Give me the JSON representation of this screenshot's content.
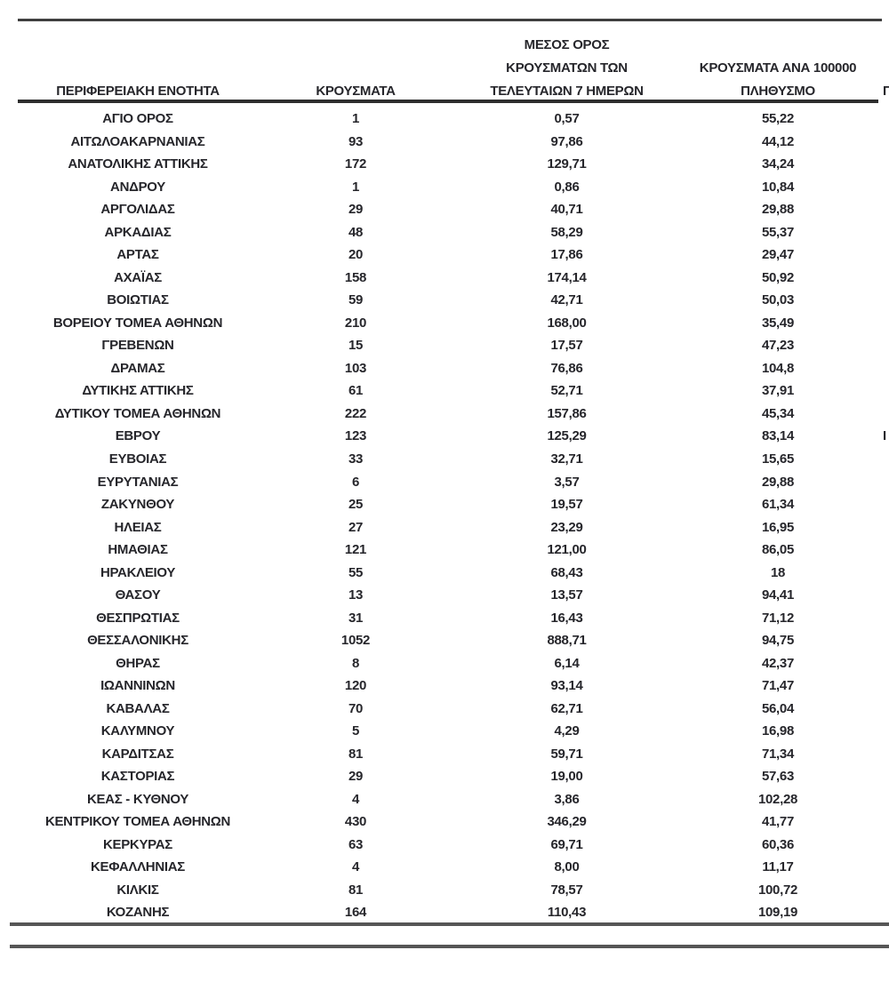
{
  "table": {
    "columns": [
      {
        "label": "ΠΕΡΙΦΕΡΕΙΑΚΗ ΕΝΟΤΗΤΑ"
      },
      {
        "label": "ΚΡΟΥΣΜΑΤΑ"
      },
      {
        "label": "ΜΕΣΟΣ ΟΡΟΣ\nΚΡΟΥΣΜΑΤΩΝ ΤΩΝ\nΤΕΛΕΥΤΑΙΩΝ 7 ΗΜΕΡΩΝ"
      },
      {
        "label": "ΚΡΟΥΣΜΑΤΑ ΑΝΑ 100000\nΠΛΗΘΥΣΜΟ"
      },
      {
        "label": "Π",
        "clipped_at_right_edge": true
      }
    ],
    "rows": [
      [
        "ΑΓΙΟ ΟΡΟΣ",
        "1",
        "0,57",
        "55,22",
        ""
      ],
      [
        "ΑΙΤΩΛΟΑΚΑΡΝΑΝΙΑΣ",
        "93",
        "97,86",
        "44,12",
        ""
      ],
      [
        "ΑΝΑΤΟΛΙΚΗΣ ΑΤΤΙΚΗΣ",
        "172",
        "129,71",
        "34,24",
        ""
      ],
      [
        "ΑΝΔΡΟΥ",
        "1",
        "0,86",
        "10,84",
        ""
      ],
      [
        "ΑΡΓΟΛΙΔΑΣ",
        "29",
        "40,71",
        "29,88",
        ""
      ],
      [
        "ΑΡΚΑΔΙΑΣ",
        "48",
        "58,29",
        "55,37",
        ""
      ],
      [
        "ΑΡΤΑΣ",
        "20",
        "17,86",
        "29,47",
        ""
      ],
      [
        "ΑΧΑΪΑΣ",
        "158",
        "174,14",
        "50,92",
        ""
      ],
      [
        "ΒΟΙΩΤΙΑΣ",
        "59",
        "42,71",
        "50,03",
        ""
      ],
      [
        "ΒΟΡΕΙΟΥ ΤΟΜΕΑ ΑΘΗΝΩΝ",
        "210",
        "168,00",
        "35,49",
        ""
      ],
      [
        "ΓΡΕΒΕΝΩΝ",
        "15",
        "17,57",
        "47,23",
        ""
      ],
      [
        "ΔΡΑΜΑΣ",
        "103",
        "76,86",
        "104,8",
        ""
      ],
      [
        "ΔΥΤΙΚΗΣ ΑΤΤΙΚΗΣ",
        "61",
        "52,71",
        "37,91",
        ""
      ],
      [
        "ΔΥΤΙΚΟΥ ΤΟΜΕΑ ΑΘΗΝΩΝ",
        "222",
        "157,86",
        "45,34",
        ""
      ],
      [
        "ΕΒΡΟΥ",
        "123",
        "125,29",
        "83,14",
        "Ι"
      ],
      [
        "ΕΥΒΟΙΑΣ",
        "33",
        "32,71",
        "15,65",
        ""
      ],
      [
        "ΕΥΡΥΤΑΝΙΑΣ",
        "6",
        "3,57",
        "29,88",
        ""
      ],
      [
        "ΖΑΚΥΝΘΟΥ",
        "25",
        "19,57",
        "61,34",
        ""
      ],
      [
        "ΗΛΕΙΑΣ",
        "27",
        "23,29",
        "16,95",
        ""
      ],
      [
        "ΗΜΑΘΙΑΣ",
        "121",
        "121,00",
        "86,05",
        ""
      ],
      [
        "ΗΡΑΚΛΕΙΟΥ",
        "55",
        "68,43",
        "18",
        ""
      ],
      [
        "ΘΑΣΟΥ",
        "13",
        "13,57",
        "94,41",
        ""
      ],
      [
        "ΘΕΣΠΡΩΤΙΑΣ",
        "31",
        "16,43",
        "71,12",
        ""
      ],
      [
        "ΘΕΣΣΑΛΟΝΙΚΗΣ",
        "1052",
        "888,71",
        "94,75",
        ""
      ],
      [
        "ΘΗΡΑΣ",
        "8",
        "6,14",
        "42,37",
        ""
      ],
      [
        "ΙΩΑΝΝΙΝΩΝ",
        "120",
        "93,14",
        "71,47",
        ""
      ],
      [
        "ΚΑΒΑΛΑΣ",
        "70",
        "62,71",
        "56,04",
        ""
      ],
      [
        "ΚΑΛΥΜΝΟΥ",
        "5",
        "4,29",
        "16,98",
        ""
      ],
      [
        "ΚΑΡΔΙΤΣΑΣ",
        "81",
        "59,71",
        "71,34",
        ""
      ],
      [
        "ΚΑΣΤΟΡΙΑΣ",
        "29",
        "19,00",
        "57,63",
        ""
      ],
      [
        "ΚΕΑΣ - ΚΥΘΝΟΥ",
        "4",
        "3,86",
        "102,28",
        ""
      ],
      [
        "ΚΕΝΤΡΙΚΟΥ ΤΟΜΕΑ ΑΘΗΝΩΝ",
        "430",
        "346,29",
        "41,77",
        ""
      ],
      [
        "ΚΕΡΚΥΡΑΣ",
        "63",
        "69,71",
        "60,36",
        ""
      ],
      [
        "ΚΕΦΑΛΛΗΝΙΑΣ",
        "4",
        "8,00",
        "11,17",
        ""
      ],
      [
        "ΚΙΛΚΙΣ",
        "81",
        "78,57",
        "100,72",
        ""
      ],
      [
        "ΚΟΖΑΝΗΣ",
        "164",
        "110,43",
        "109,19",
        ""
      ]
    ]
  },
  "colors": {
    "text": "#26262b",
    "rule_top": "#3f3f3f",
    "rule_header": "#2e2e2e",
    "rule_bottom": "#565656",
    "background": "#ffffff"
  }
}
